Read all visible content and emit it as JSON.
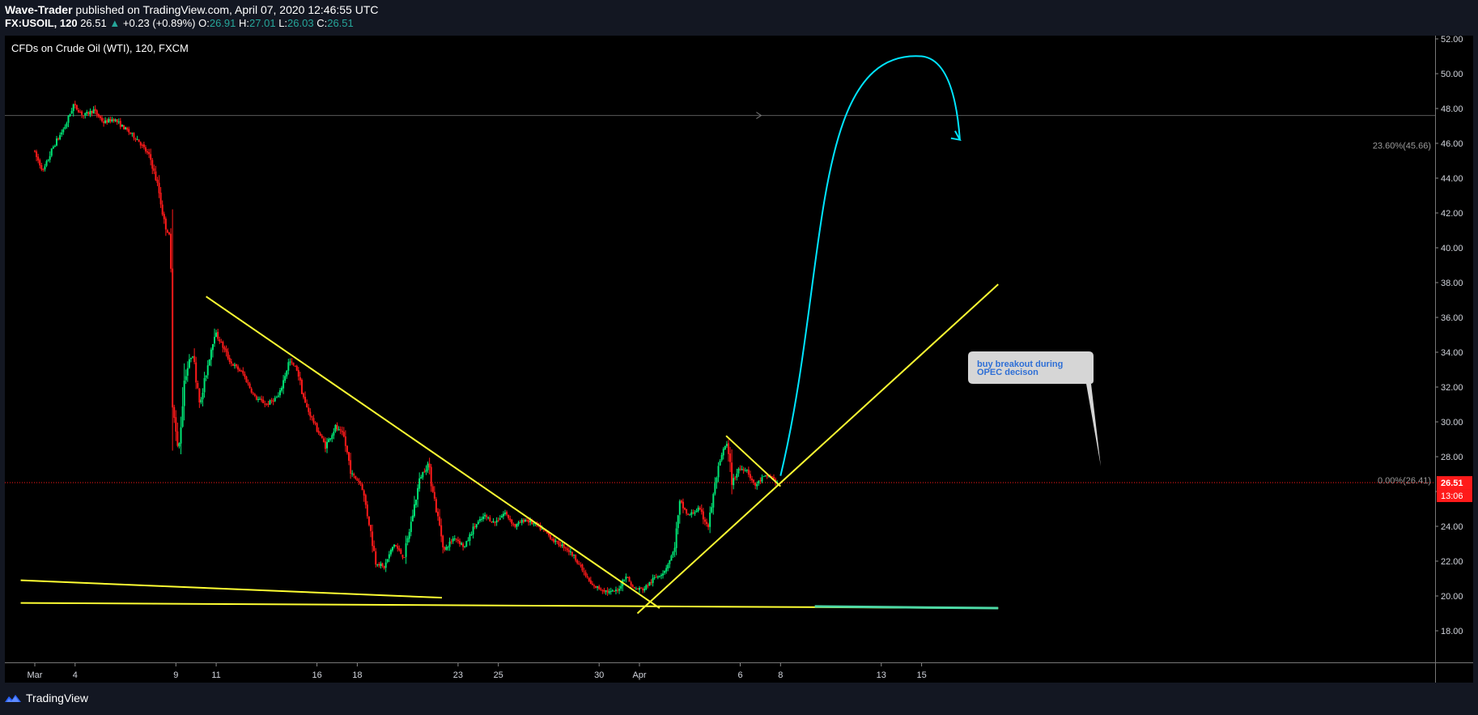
{
  "header": {
    "author": "Wave-Trader",
    "published_text": "published on TradingView.com, April 07, 2020 12:46:55 UTC",
    "symbol": "FX:USOIL, 120",
    "last": "26.51",
    "change_arrow": "▲",
    "change": "+0.23 (+0.89%)",
    "o_label": "O:",
    "o_value": "26.91",
    "h_label": "H:",
    "h_value": "27.01",
    "l_label": "L:",
    "l_value": "26.03",
    "c_label": "C:",
    "c_value": "26.51"
  },
  "footer": {
    "brand": "TradingView",
    "logo_icon": "tradingview-logo-icon"
  },
  "colors": {
    "background": "#000000",
    "frame": "#131722",
    "up": "#00e676",
    "down": "#ff1a1a",
    "trendline": "#ffff33",
    "forecast_arrow": "#00e5ff",
    "price_label": "#ff1a1a",
    "support_highlight": "#4dd9a6"
  },
  "chart_data": {
    "type": "candlestick",
    "title": "CFDs on Crude Oil (WTI), 120, FXCM",
    "y_range": [
      17,
      52.2
    ],
    "y_ticks": [
      "52.00",
      "50.00",
      "48.00",
      "46.00",
      "44.00",
      "42.00",
      "40.00",
      "38.00",
      "36.00",
      "34.00",
      "32.00",
      "30.00",
      "28.00",
      "26.00",
      "24.00",
      "22.00",
      "20.00",
      "18.00"
    ],
    "x_ticks": [
      {
        "label": "Mar",
        "day": 0
      },
      {
        "label": "4",
        "day": 2
      },
      {
        "label": "9",
        "day": 7
      },
      {
        "label": "11",
        "day": 9
      },
      {
        "label": "16",
        "day": 14
      },
      {
        "label": "18",
        "day": 16
      },
      {
        "label": "23",
        "day": 21
      },
      {
        "label": "25",
        "day": 23
      },
      {
        "label": "30",
        "day": 28
      },
      {
        "label": "Apr",
        "day": 30
      },
      {
        "label": "6",
        "day": 35
      },
      {
        "label": "8",
        "day": 37
      },
      {
        "label": "13",
        "day": 42
      },
      {
        "label": "15",
        "day": 44
      }
    ],
    "last_price": {
      "value": 26.51,
      "label": "26.51",
      "countdown": "13:06"
    },
    "horizontal_level": 47.6,
    "fib_levels": [
      {
        "label": "23.60%(45.66)",
        "value": 45.66
      },
      {
        "label": "0.00%(26.41)",
        "value": 26.41
      }
    ],
    "annotation": {
      "text_line1": "buy breakout during",
      "text_line2": "OPEC decison"
    },
    "price_path": [
      {
        "day": 0.0,
        "price": 45.6
      },
      {
        "day": 0.5,
        "price": 44.4
      },
      {
        "day": 1.0,
        "price": 45.8
      },
      {
        "day": 1.6,
        "price": 47.0
      },
      {
        "day": 2.0,
        "price": 48.2
      },
      {
        "day": 2.5,
        "price": 47.6
      },
      {
        "day": 3.0,
        "price": 47.9
      },
      {
        "day": 3.5,
        "price": 47.2
      },
      {
        "day": 4.0,
        "price": 47.4
      },
      {
        "day": 4.6,
        "price": 46.8
      },
      {
        "day": 5.2,
        "price": 46.2
      },
      {
        "day": 5.8,
        "price": 45.2
      },
      {
        "day": 6.2,
        "price": 43.5
      },
      {
        "day": 6.5,
        "price": 41.5
      },
      {
        "day": 6.8,
        "price": 40.5
      },
      {
        "day": 6.95,
        "price": 31.0
      },
      {
        "day": 7.2,
        "price": 28.0
      },
      {
        "day": 7.5,
        "price": 32.5
      },
      {
        "day": 7.9,
        "price": 34.0
      },
      {
        "day": 8.3,
        "price": 31.0
      },
      {
        "day": 8.7,
        "price": 33.5
      },
      {
        "day": 9.0,
        "price": 35.2
      },
      {
        "day": 9.3,
        "price": 34.6
      },
      {
        "day": 9.8,
        "price": 33.4
      },
      {
        "day": 10.4,
        "price": 32.8
      },
      {
        "day": 11.0,
        "price": 31.4
      },
      {
        "day": 11.6,
        "price": 31.0
      },
      {
        "day": 12.2,
        "price": 31.5
      },
      {
        "day": 12.7,
        "price": 33.5
      },
      {
        "day": 13.1,
        "price": 33.0
      },
      {
        "day": 13.5,
        "price": 31.0
      },
      {
        "day": 14.0,
        "price": 29.8
      },
      {
        "day": 14.5,
        "price": 28.6
      },
      {
        "day": 15.0,
        "price": 29.7
      },
      {
        "day": 15.4,
        "price": 29.2
      },
      {
        "day": 15.8,
        "price": 27.0
      },
      {
        "day": 16.3,
        "price": 26.4
      },
      {
        "day": 16.7,
        "price": 24.0
      },
      {
        "day": 17.0,
        "price": 22.0
      },
      {
        "day": 17.4,
        "price": 21.6
      },
      {
        "day": 17.9,
        "price": 23.0
      },
      {
        "day": 18.4,
        "price": 22.2
      },
      {
        "day": 18.8,
        "price": 24.5
      },
      {
        "day": 19.2,
        "price": 26.8
      },
      {
        "day": 19.6,
        "price": 27.6
      },
      {
        "day": 20.0,
        "price": 25.0
      },
      {
        "day": 20.4,
        "price": 22.6
      },
      {
        "day": 20.9,
        "price": 23.4
      },
      {
        "day": 21.4,
        "price": 22.8
      },
      {
        "day": 21.9,
        "price": 24.0
      },
      {
        "day": 22.4,
        "price": 24.6
      },
      {
        "day": 22.9,
        "price": 24.2
      },
      {
        "day": 23.4,
        "price": 24.8
      },
      {
        "day": 23.9,
        "price": 24.0
      },
      {
        "day": 24.4,
        "price": 24.4
      },
      {
        "day": 24.9,
        "price": 24.1
      },
      {
        "day": 25.4,
        "price": 23.7
      },
      {
        "day": 25.9,
        "price": 23.1
      },
      {
        "day": 26.4,
        "price": 22.8
      },
      {
        "day": 26.9,
        "price": 22.2
      },
      {
        "day": 27.3,
        "price": 21.4
      },
      {
        "day": 27.7,
        "price": 20.6
      },
      {
        "day": 28.2,
        "price": 20.4
      },
      {
        "day": 28.6,
        "price": 20.2
      },
      {
        "day": 29.0,
        "price": 20.3
      },
      {
        "day": 29.4,
        "price": 21.2
      },
      {
        "day": 29.8,
        "price": 20.4
      },
      {
        "day": 30.3,
        "price": 20.4
      },
      {
        "day": 30.8,
        "price": 21.0
      },
      {
        "day": 31.3,
        "price": 21.4
      },
      {
        "day": 31.8,
        "price": 22.6
      },
      {
        "day": 32.1,
        "price": 25.4
      },
      {
        "day": 32.5,
        "price": 24.6
      },
      {
        "day": 33.0,
        "price": 25.0
      },
      {
        "day": 33.5,
        "price": 24.0
      },
      {
        "day": 33.9,
        "price": 26.8
      },
      {
        "day": 34.2,
        "price": 28.2
      },
      {
        "day": 34.4,
        "price": 28.8
      },
      {
        "day": 34.7,
        "price": 26.5
      },
      {
        "day": 35.0,
        "price": 27.3
      },
      {
        "day": 35.4,
        "price": 27.3
      },
      {
        "day": 35.8,
        "price": 26.3
      },
      {
        "day": 36.2,
        "price": 26.8
      },
      {
        "day": 36.6,
        "price": 26.9
      },
      {
        "day": 36.9,
        "price": 26.5
      }
    ],
    "drawings": {
      "trendlines": [
        {
          "name": "falling-resistance-line",
          "from": {
            "day": 8.5,
            "price": 37.2
          },
          "to": {
            "day": 31.0,
            "price": 19.3
          }
        },
        {
          "name": "rising-support-line",
          "from": {
            "day": 29.9,
            "price": 19.0
          },
          "to": {
            "day": 47.8,
            "price": 37.9
          }
        },
        {
          "name": "pennant-upper-line",
          "from": {
            "day": 34.3,
            "price": 29.2
          },
          "to": {
            "day": 37.0,
            "price": 26.3
          }
        },
        {
          "name": "horizontal-support-line",
          "from": {
            "day": -0.7,
            "price": 19.6
          },
          "to": {
            "day": 47.8,
            "price": 19.3
          }
        },
        {
          "name": "lower-wedge-line",
          "from": {
            "day": -0.7,
            "price": 20.9
          },
          "to": {
            "day": 20.2,
            "price": 19.9
          }
        },
        {
          "name": "support-highlight-line",
          "from": {
            "day": 38.7,
            "price": 19.4
          },
          "to": {
            "day": 47.8,
            "price": 19.3
          }
        }
      ],
      "forecast_arrow": {
        "from": {
          "day": 37.0,
          "price": 26.9
        },
        "via": {
          "day": 44.0,
          "price": 51.0
        },
        "to": {
          "day": 45.9,
          "price": 46.2
        }
      }
    }
  }
}
